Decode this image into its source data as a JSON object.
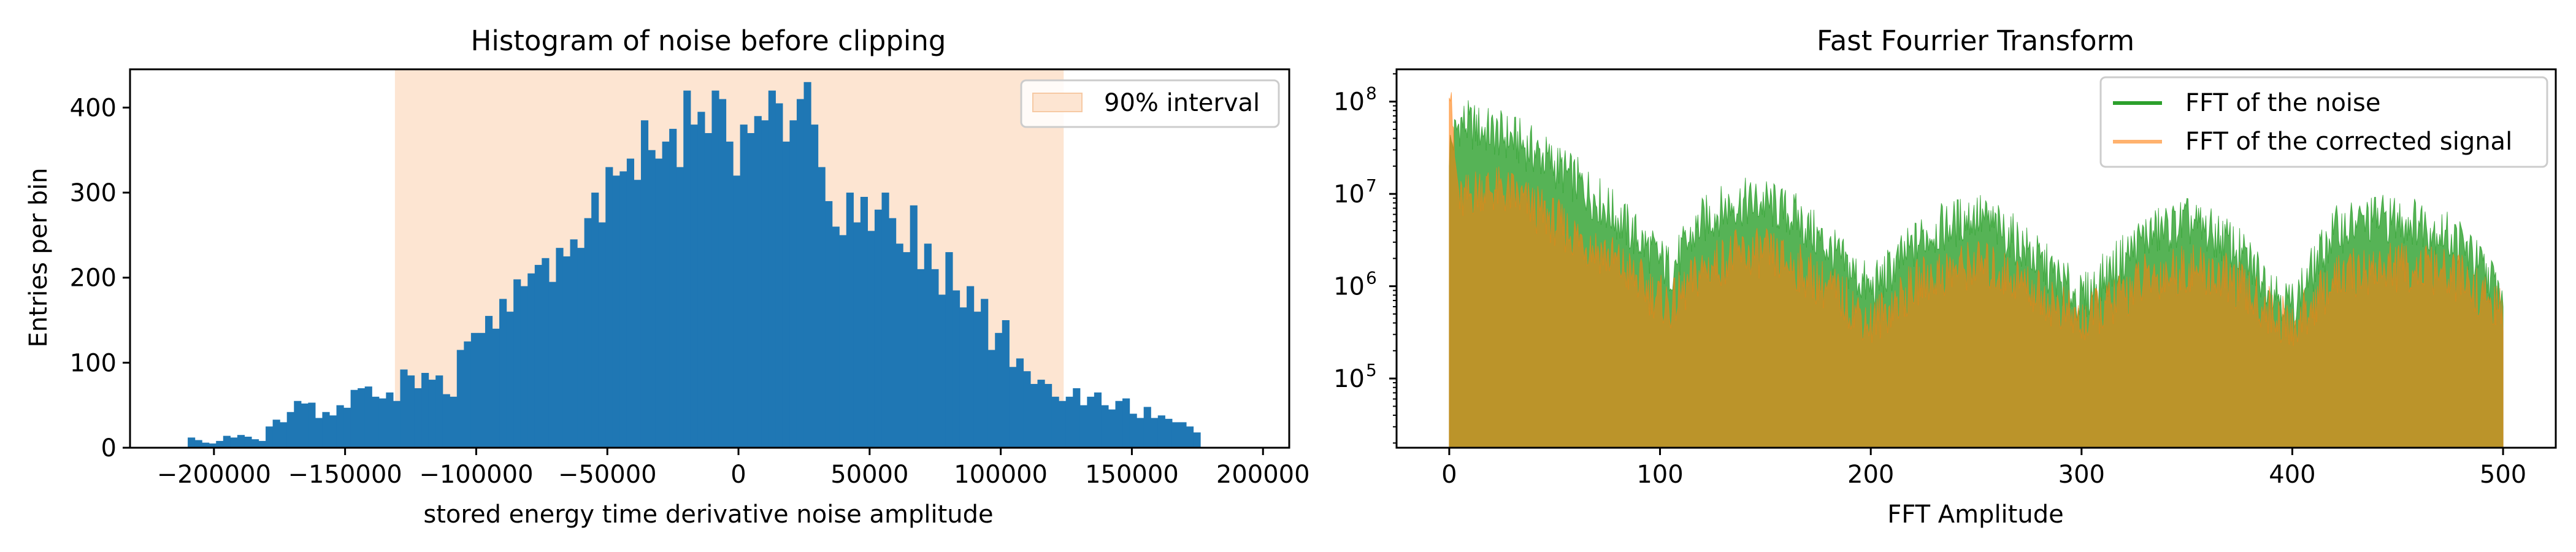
{
  "chart_data": [
    {
      "type": "bar",
      "title": "Histogram of noise before clipping",
      "xlabel": "stored energy time derivative noise amplitude",
      "ylabel": "Entries per bin",
      "xlim": [
        -232000,
        210000
      ],
      "ylim": [
        0,
        445
      ],
      "xticks": [
        -200000,
        -150000,
        -100000,
        -50000,
        0,
        50000,
        100000,
        150000,
        200000
      ],
      "xtick_labels": [
        "−200000",
        "−150000",
        "−100000",
        "−50000",
        "0",
        "50000",
        "100000",
        "150000",
        "200000"
      ],
      "yticks": [
        0,
        100,
        200,
        300,
        400
      ],
      "ytick_labels": [
        "0",
        "100",
        "200",
        "300",
        "400"
      ],
      "bin_start": -210000,
      "bin_width": 2700,
      "counts": [
        12,
        9,
        6,
        5,
        8,
        14,
        12,
        15,
        13,
        10,
        8,
        25,
        33,
        30,
        42,
        55,
        52,
        53,
        35,
        42,
        38,
        50,
        47,
        68,
        70,
        72,
        60,
        58,
        65,
        55,
        92,
        85,
        70,
        88,
        80,
        85,
        63,
        60,
        115,
        125,
        135,
        135,
        155,
        140,
        175,
        160,
        198,
        190,
        205,
        215,
        223,
        195,
        235,
        225,
        245,
        235,
        270,
        300,
        265,
        330,
        320,
        325,
        340,
        315,
        385,
        350,
        340,
        360,
        375,
        330,
        420,
        380,
        395,
        370,
        420,
        410,
        360,
        320,
        380,
        370,
        390,
        385,
        420,
        405,
        360,
        385,
        410,
        430,
        380,
        330,
        290,
        260,
        250,
        300,
        265,
        295,
        255,
        280,
        300,
        270,
        240,
        230,
        285,
        210,
        240,
        210,
        180,
        230,
        185,
        165,
        190,
        160,
        175,
        115,
        135,
        150,
        95,
        105,
        90,
        75,
        80,
        75,
        60,
        55,
        60,
        70,
        50,
        60,
        65,
        50,
        45,
        55,
        58,
        40,
        35,
        48,
        35,
        38,
        34,
        30,
        30,
        25,
        18
      ],
      "legend": {
        "entries": [
          "90% interval"
        ],
        "placement": "upper right"
      },
      "span": {
        "label": "90% interval",
        "from": -131000,
        "to": 124000,
        "color": "#fde5d2"
      },
      "bar_color": "#1f77b4"
    },
    {
      "type": "area",
      "title": "Fast Fourrier Transform",
      "xlabel": "FFT Amplitude",
      "ylabel": "",
      "xlim": [
        -25,
        525
      ],
      "ylim_log10": [
        4.25,
        8.35
      ],
      "yscale": "log",
      "xticks": [
        0,
        100,
        200,
        300,
        400,
        500
      ],
      "xtick_labels": [
        "0",
        "100",
        "200",
        "300",
        "400",
        "500"
      ],
      "yticks": [
        100000,
        1000000,
        10000000,
        100000000
      ],
      "ytick_labels": [
        "10",
        "10",
        "10",
        "10"
      ],
      "ytick_exponents": [
        "5",
        "6",
        "7",
        "8"
      ],
      "legend": {
        "entries": [
          "FFT of the noise",
          "FFT of the corrected signal"
        ],
        "placement": "upper right"
      },
      "series": [
        {
          "name": "FFT of the noise",
          "color": "#2ca02c",
          "alpha": 0.8,
          "x": [
            0,
            5,
            15,
            30,
            45,
            60,
            75,
            95,
            105,
            120,
            135,
            150,
            165,
            185,
            200,
            225,
            250,
            270,
            300,
            330,
            350,
            370,
            400,
            420,
            440,
            460,
            480,
            500
          ],
          "y": [
            30000000,
            60000000,
            50000000,
            40000000,
            25000000,
            14000000,
            7000000,
            2500000,
            1500000,
            5000000,
            8000000,
            8000000,
            5500000,
            2000000,
            900000,
            3500000,
            6000000,
            3000000,
            700000,
            3500000,
            5000000,
            3000000,
            600000,
            4000000,
            5500000,
            5000000,
            3000000,
            800000
          ]
        },
        {
          "name": "FFT of the corrected signal",
          "color": "#ff7f0e",
          "alpha": 0.6,
          "x": [
            0,
            1,
            2,
            5,
            15,
            30,
            45,
            60,
            75,
            95,
            105,
            120,
            135,
            150,
            165,
            185,
            200,
            225,
            250,
            270,
            300,
            330,
            350,
            370,
            400,
            420,
            440,
            460,
            480,
            500
          ],
          "y": [
            200000000,
            150000000,
            30000000,
            8000000,
            12000000,
            10000000,
            6000000,
            3500000,
            2200000,
            900000,
            600000,
            1500000,
            2200000,
            2300000,
            1600000,
            800000,
            400000,
            1200000,
            1800000,
            1200000,
            400000,
            1200000,
            1600000,
            1200000,
            350000,
            1200000,
            1600000,
            1600000,
            1200000,
            500000
          ]
        }
      ]
    }
  ]
}
